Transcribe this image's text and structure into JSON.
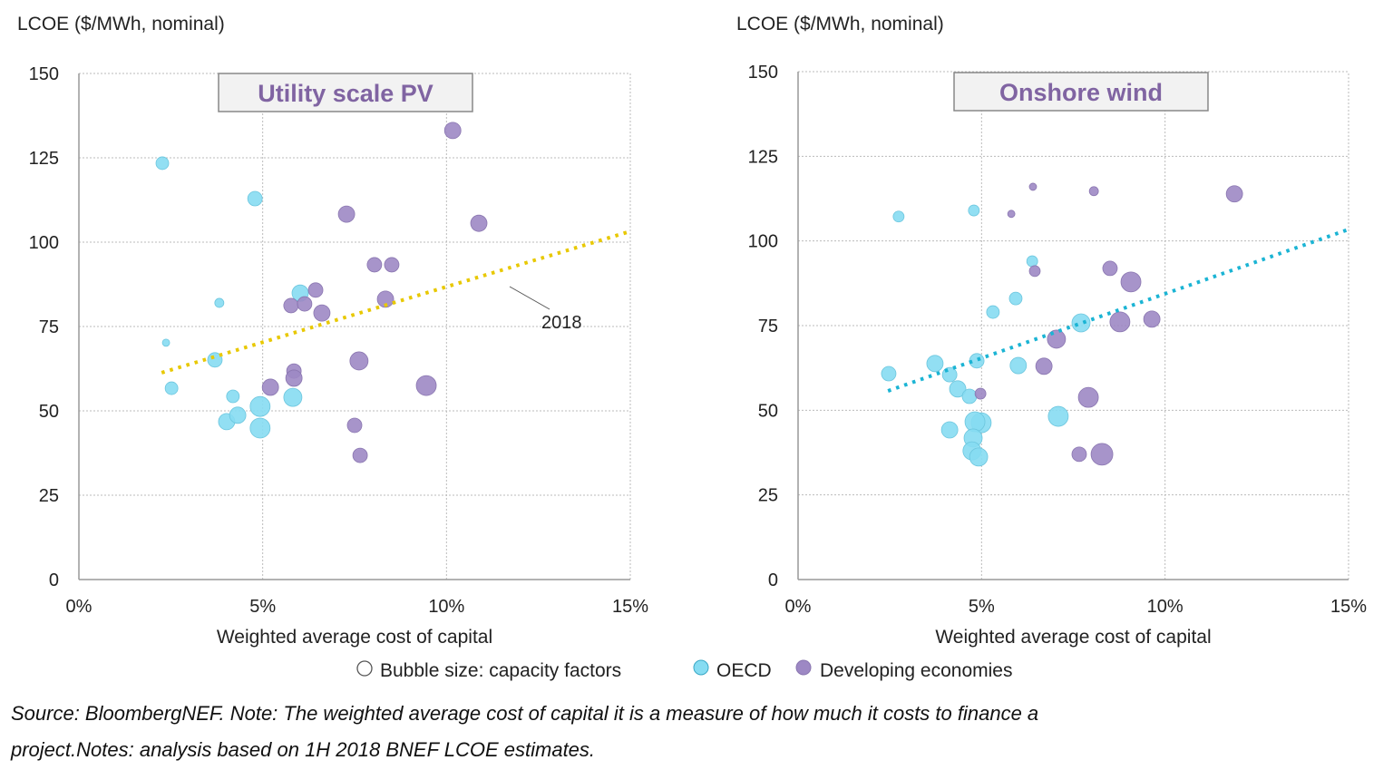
{
  "legend": {
    "size_label": "Bubble size: capacity factors",
    "oecd_label": "OECD",
    "dev_label": "Developing economies"
  },
  "colors": {
    "oecd": "#86dcf2",
    "developing": "#9d88c4",
    "pv_trend": "#e8c800",
    "wind_trend": "#1bb4d4",
    "title": "#8064a2"
  },
  "source": {
    "line1": "Source: BloombergNEF.  Note: The weighted average cost of capital it is a measure of how much it costs to finance a",
    "line2": "project.Notes: analysis based on 1H 2018 BNEF LCOE estimates."
  },
  "chart_data": [
    {
      "type": "scatter",
      "title": "Utility  scale PV",
      "ylabel": "LCOE ($/MWh, nominal)",
      "xlabel": "Weighted average cost of capital",
      "xlim": [
        0,
        15
      ],
      "ylim": [
        0,
        150
      ],
      "xticks": [
        "0%",
        "5%",
        "10%",
        "15%"
      ],
      "xtick_values": [
        0,
        5,
        10,
        15
      ],
      "yticks": [
        "0",
        "25",
        "50",
        "75",
        "100",
        "125",
        "150"
      ],
      "ytick_values": [
        0,
        25,
        50,
        75,
        100,
        125,
        150
      ],
      "grid": true,
      "trend": {
        "label": "2018",
        "x": [
          2.25,
          15
        ],
        "y": [
          61.3,
          103.2
        ]
      },
      "series": [
        {
          "name": "OECD",
          "points": [
            [
              2.27,
              123.4,
              7
            ],
            [
              4.79,
              112.9,
              8
            ],
            [
              3.82,
              82.0,
              5
            ],
            [
              2.37,
              70.2,
              4
            ],
            [
              3.7,
              65.1,
              8
            ],
            [
              2.52,
              56.7,
              7
            ],
            [
              4.19,
              54.3,
              7
            ],
            [
              6.02,
              84.9,
              9
            ],
            [
              5.82,
              54.0,
              10
            ],
            [
              4.02,
              46.8,
              9
            ],
            [
              4.32,
              48.7,
              9
            ],
            [
              4.93,
              51.3,
              11
            ],
            [
              4.93,
              44.9,
              11
            ]
          ]
        },
        {
          "name": "Developing economies",
          "points": [
            [
              10.17,
              133.1,
              9
            ],
            [
              10.88,
              105.6,
              9
            ],
            [
              7.28,
              108.3,
              9
            ],
            [
              8.04,
              93.3,
              8
            ],
            [
              8.51,
              93.3,
              8
            ],
            [
              8.34,
              83.1,
              9
            ],
            [
              6.44,
              85.8,
              8
            ],
            [
              5.77,
              81.2,
              8
            ],
            [
              6.14,
              81.7,
              8
            ],
            [
              6.61,
              79.0,
              9
            ],
            [
              5.85,
              61.8,
              8
            ],
            [
              5.85,
              59.7,
              9
            ],
            [
              5.21,
              57.0,
              9
            ],
            [
              7.62,
              64.8,
              10
            ],
            [
              9.45,
              57.5,
              11
            ],
            [
              7.5,
              45.7,
              8
            ],
            [
              7.65,
              36.8,
              8
            ]
          ]
        }
      ]
    },
    {
      "type": "scatter",
      "title": "Onshore wind",
      "ylabel": "LCOE ($/MWh, nominal)",
      "xlabel": "Weighted average cost of capital",
      "xlim": [
        0,
        15
      ],
      "ylim": [
        0,
        150
      ],
      "xticks": [
        "0%",
        "5%",
        "10%",
        "15%"
      ],
      "xtick_values": [
        0,
        5,
        10,
        15
      ],
      "yticks": [
        "0",
        "25",
        "50",
        "75",
        "100",
        "125",
        "150"
      ],
      "ytick_values": [
        0,
        25,
        50,
        75,
        100,
        125,
        150
      ],
      "grid": true,
      "trend": {
        "x": [
          2.45,
          15
        ],
        "y": [
          55.7,
          103.4
        ]
      },
      "series": [
        {
          "name": "OECD",
          "points": [
            [
              2.74,
              107.2,
              6
            ],
            [
              4.79,
              109.0,
              6
            ],
            [
              6.38,
              94.0,
              6
            ],
            [
              5.93,
              83.0,
              7
            ],
            [
              5.31,
              79.0,
              7
            ],
            [
              7.71,
              75.8,
              10
            ],
            [
              3.73,
              63.8,
              9
            ],
            [
              4.87,
              64.6,
              8
            ],
            [
              6.0,
              63.2,
              9
            ],
            [
              2.47,
              60.8,
              8
            ],
            [
              4.13,
              60.5,
              8
            ],
            [
              4.35,
              56.3,
              9
            ],
            [
              4.67,
              54.1,
              8
            ],
            [
              7.09,
              48.2,
              11
            ],
            [
              4.13,
              44.2,
              9
            ],
            [
              4.99,
              46.3,
              11
            ],
            [
              4.82,
              46.6,
              11
            ],
            [
              4.77,
              41.8,
              10
            ],
            [
              4.74,
              38.0,
              10
            ],
            [
              4.92,
              36.2,
              10
            ]
          ]
        },
        {
          "name": "Developing economies",
          "points": [
            [
              6.4,
              116.0,
              4
            ],
            [
              8.06,
              114.7,
              5
            ],
            [
              5.81,
              108.0,
              4
            ],
            [
              11.89,
              113.9,
              9
            ],
            [
              6.45,
              91.1,
              6
            ],
            [
              8.5,
              91.9,
              8
            ],
            [
              9.07,
              87.9,
              11
            ],
            [
              9.64,
              76.9,
              9
            ],
            [
              8.77,
              76.1,
              11
            ],
            [
              7.04,
              71.0,
              10
            ],
            [
              6.7,
              63.0,
              9
            ],
            [
              4.97,
              54.9,
              6
            ],
            [
              7.91,
              53.8,
              11
            ],
            [
              7.66,
              37.0,
              8
            ],
            [
              8.28,
              37.0,
              12
            ]
          ]
        }
      ]
    }
  ]
}
